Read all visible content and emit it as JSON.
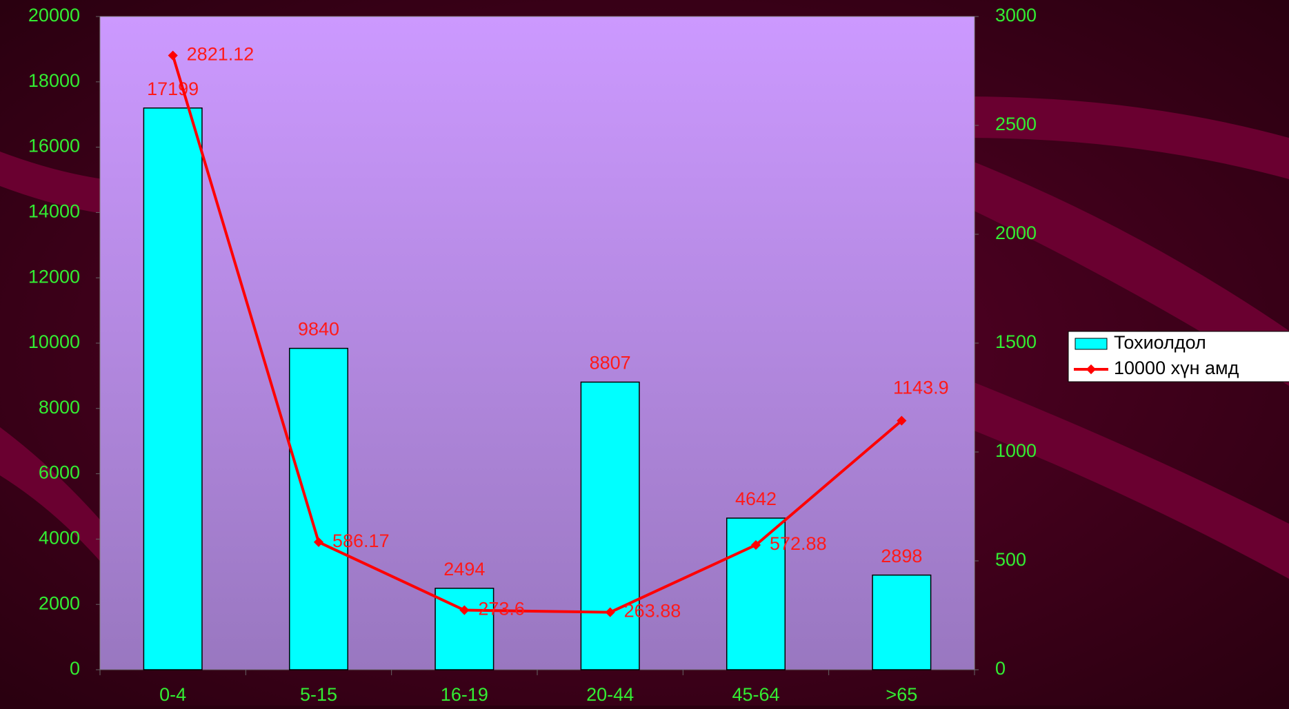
{
  "chart_data": {
    "type": "bar-line",
    "categories": [
      "0-4",
      "5-15",
      "16-19",
      "20-44",
      "45-64",
      ">65"
    ],
    "series": [
      {
        "name": "Тохиолдол",
        "type": "bar",
        "color": "#00ffff",
        "values": [
          17199,
          9840,
          2494,
          8807,
          4642,
          2898
        ]
      },
      {
        "name": "10000 хүн амд",
        "type": "line",
        "axis": "y2",
        "color": "#ff0000",
        "values": [
          2821.12,
          586.17,
          273.6,
          263.88,
          572.88,
          1143.9
        ]
      }
    ],
    "ylim": [
      0,
      20000
    ],
    "yticks": [
      0,
      2000,
      4000,
      6000,
      8000,
      10000,
      12000,
      14000,
      16000,
      18000,
      20000
    ],
    "y2lim": [
      0,
      3000
    ],
    "y2ticks": [
      0,
      500,
      1000,
      1500,
      2000,
      2500,
      3000
    ],
    "legend": "right"
  }
}
